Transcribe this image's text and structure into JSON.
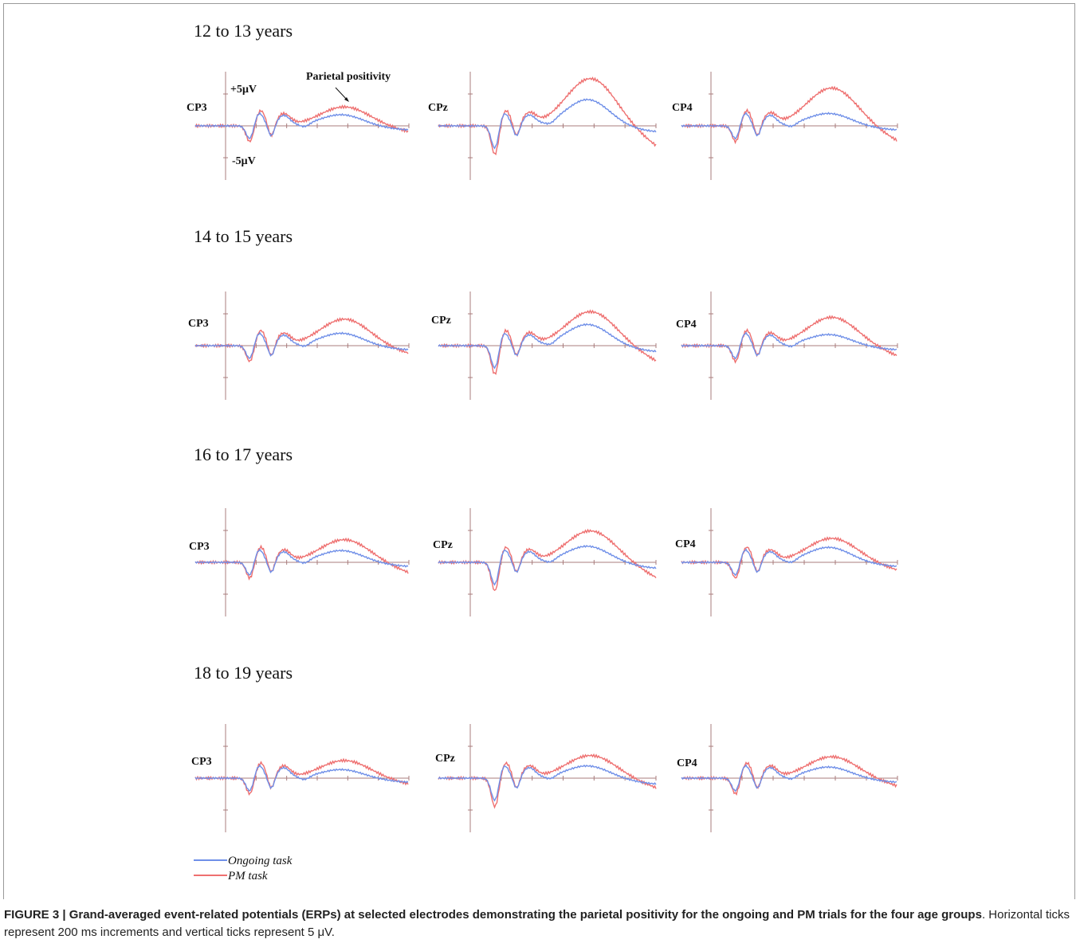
{
  "figure": {
    "rows": [
      {
        "title": "12 to 13 years",
        "electrodes": [
          "CP3",
          "CPz",
          "CP4"
        ]
      },
      {
        "title": "14 to 15 years",
        "electrodes": [
          "CP3",
          "CPz",
          "CP4"
        ]
      },
      {
        "title": "16 to 17 years",
        "electrodes": [
          "CP3",
          "CPz",
          "CP4"
        ]
      },
      {
        "title": "18 to 19 years",
        "electrodes": [
          "CP3",
          "CPz",
          "CP4"
        ]
      }
    ],
    "scale_plus": "+5μV",
    "scale_minus": "-5μV",
    "annotation": "Parietal positivity",
    "legend": [
      {
        "label": "Ongoing task",
        "color": "#6f8fe8"
      },
      {
        "label": "PM task",
        "color": "#ee6f6f"
      }
    ],
    "axis_color": "#a87c7c"
  },
  "caption": {
    "bold": "FIGURE 3 | Grand-averaged event-related potentials (ERPs) at selected electrodes demonstrating the parietal positivity for the ongoing and PM trials for the four age groups",
    "rest": ". Horizontal ticks represent 200 ms increments and vertical ticks represent 5 μV."
  }
}
